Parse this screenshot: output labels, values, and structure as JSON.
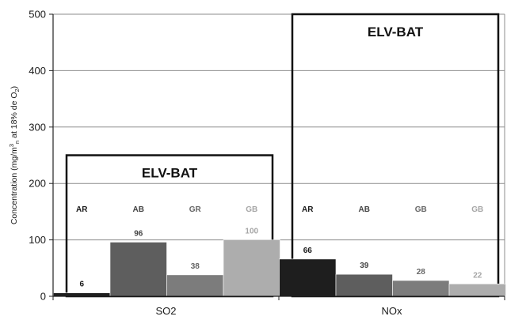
{
  "chart_data": {
    "type": "bar",
    "categories": [
      "SO2",
      "NOx"
    ],
    "bar_labels": [
      [
        "AR",
        "AB",
        "GR",
        "GB"
      ],
      [
        "AR",
        "AB",
        "GB",
        "GB"
      ]
    ],
    "values": [
      [
        6,
        96,
        38,
        100
      ],
      [
        66,
        39,
        28,
        22
      ]
    ],
    "bar_colors": [
      "#1e1e1e",
      "#5e5e5e",
      "#7c7c7c",
      "#adadad"
    ],
    "label_colors": [
      "#1a1a1a",
      "#444444",
      "#666666",
      "#a6a6a6"
    ],
    "ylabel_parts": [
      "Concentration (mg/m",
      "3",
      "n",
      " at 18% de O",
      "2",
      ")"
    ],
    "ylim": [
      0,
      500
    ],
    "yticks": [
      0,
      100,
      200,
      300,
      400,
      500
    ],
    "grid": true,
    "limit_boxes": [
      {
        "category": "SO2",
        "label": "ELV-BAT",
        "value": 250
      },
      {
        "category": "NOx",
        "label": "ELV-BAT",
        "value": 500
      }
    ]
  }
}
